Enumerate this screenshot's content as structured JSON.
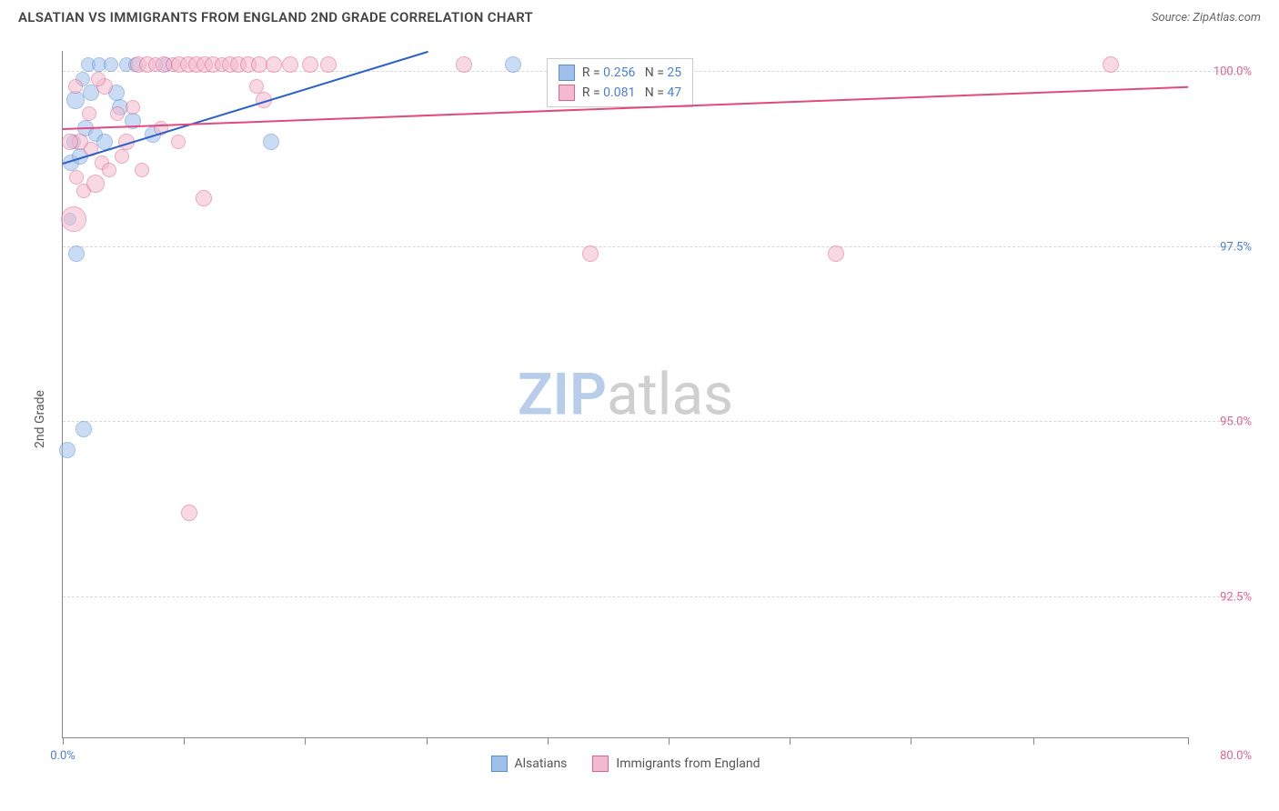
{
  "header": {
    "title": "ALSATIAN VS IMMIGRANTS FROM ENGLAND 2ND GRADE CORRELATION CHART",
    "source": "Source: ZipAtlas.com"
  },
  "chart": {
    "type": "scatter",
    "y_axis_label": "2nd Grade",
    "watermark": {
      "part1": "ZIP",
      "part2": "atlas",
      "color1": "#b7cdea",
      "color2": "#cfcfcf"
    },
    "background_color": "#ffffff",
    "grid_color": "#d8d8d8",
    "axis_color": "#888888",
    "xlim": [
      0,
      80
    ],
    "ylim": [
      90.5,
      100.3
    ],
    "xticks": [
      {
        "pos": 0,
        "label": "0.0%",
        "label_color": "#4a7fd6"
      },
      {
        "pos": 8.6,
        "label": ""
      },
      {
        "pos": 17.2,
        "label": ""
      },
      {
        "pos": 25.9,
        "label": ""
      },
      {
        "pos": 34.5,
        "label": ""
      },
      {
        "pos": 43.1,
        "label": ""
      },
      {
        "pos": 51.7,
        "label": ""
      },
      {
        "pos": 60.3,
        "label": ""
      },
      {
        "pos": 69.0,
        "label": ""
      },
      {
        "pos": 80.0,
        "label": "80.0%",
        "label_color": "#e16290",
        "at_right_edge": true
      }
    ],
    "yticks": [
      {
        "pos": 92.5,
        "label": "92.5%",
        "color": "#e16290"
      },
      {
        "pos": 95.0,
        "label": "95.0%",
        "color": "#e16290"
      },
      {
        "pos": 97.5,
        "label": "97.5%",
        "color": "#4a7fd6"
      },
      {
        "pos": 100.0,
        "label": "100.0%",
        "color": "#e16290"
      }
    ],
    "series": [
      {
        "name": "Alsatians",
        "color_fill": "#9fc0ea",
        "color_stroke": "#5a8fd6",
        "trend_color": "#2d62c8",
        "R": "0.256",
        "N": "25",
        "trend": {
          "x1": 0,
          "y1": 98.7,
          "x2": 26,
          "y2": 100.3
        },
        "points": [
          {
            "x": 0.3,
            "y": 94.6,
            "r": 9
          },
          {
            "x": 1.5,
            "y": 94.9,
            "r": 9
          },
          {
            "x": 1.0,
            "y": 97.4,
            "r": 9
          },
          {
            "x": 0.5,
            "y": 97.9,
            "r": 7
          },
          {
            "x": 0.6,
            "y": 98.7,
            "r": 9
          },
          {
            "x": 1.2,
            "y": 98.8,
            "r": 9
          },
          {
            "x": 0.8,
            "y": 99.0,
            "r": 8
          },
          {
            "x": 1.6,
            "y": 99.2,
            "r": 9
          },
          {
            "x": 2.3,
            "y": 99.1,
            "r": 8
          },
          {
            "x": 0.9,
            "y": 99.6,
            "r": 10
          },
          {
            "x": 1.4,
            "y": 99.9,
            "r": 8
          },
          {
            "x": 1.8,
            "y": 100.1,
            "r": 8
          },
          {
            "x": 2.6,
            "y": 100.1,
            "r": 8
          },
          {
            "x": 3.4,
            "y": 100.1,
            "r": 8
          },
          {
            "x": 4.1,
            "y": 99.5,
            "r": 9
          },
          {
            "x": 4.5,
            "y": 100.1,
            "r": 8
          },
          {
            "x": 5.2,
            "y": 100.1,
            "r": 8
          },
          {
            "x": 6.4,
            "y": 99.1,
            "r": 9
          },
          {
            "x": 7.3,
            "y": 100.1,
            "r": 8
          },
          {
            "x": 3.0,
            "y": 99.0,
            "r": 9
          },
          {
            "x": 5.0,
            "y": 99.3,
            "r": 9
          },
          {
            "x": 14.8,
            "y": 99.0,
            "r": 9
          },
          {
            "x": 32.0,
            "y": 100.1,
            "r": 9
          },
          {
            "x": 2.0,
            "y": 99.7,
            "r": 9
          },
          {
            "x": 3.8,
            "y": 99.7,
            "r": 9
          }
        ]
      },
      {
        "name": "Immigrants from England",
        "color_fill": "#f3b9cc",
        "color_stroke": "#e16290",
        "trend_color": "#e04a7e",
        "R": "0.081",
        "N": "47",
        "trend": {
          "x1": 0,
          "y1": 99.2,
          "x2": 80,
          "y2": 99.8
        },
        "points": [
          {
            "x": 0.8,
            "y": 97.9,
            "r": 14
          },
          {
            "x": 1.5,
            "y": 98.3,
            "r": 8
          },
          {
            "x": 2.3,
            "y": 98.4,
            "r": 10
          },
          {
            "x": 2.8,
            "y": 98.7,
            "r": 8
          },
          {
            "x": 1.2,
            "y": 99.0,
            "r": 9
          },
          {
            "x": 0.5,
            "y": 99.0,
            "r": 9
          },
          {
            "x": 3.3,
            "y": 98.6,
            "r": 8
          },
          {
            "x": 3.9,
            "y": 99.4,
            "r": 8
          },
          {
            "x": 4.5,
            "y": 99.0,
            "r": 9
          },
          {
            "x": 5.0,
            "y": 99.5,
            "r": 8
          },
          {
            "x": 5.4,
            "y": 100.1,
            "r": 9
          },
          {
            "x": 6.0,
            "y": 100.1,
            "r": 9
          },
          {
            "x": 6.6,
            "y": 100.1,
            "r": 8
          },
          {
            "x": 7.2,
            "y": 100.1,
            "r": 9
          },
          {
            "x": 7.8,
            "y": 100.1,
            "r": 8
          },
          {
            "x": 8.3,
            "y": 100.1,
            "r": 9
          },
          {
            "x": 8.9,
            "y": 100.1,
            "r": 9
          },
          {
            "x": 9.5,
            "y": 100.1,
            "r": 9
          },
          {
            "x": 10.1,
            "y": 100.1,
            "r": 9
          },
          {
            "x": 10.7,
            "y": 100.1,
            "r": 9
          },
          {
            "x": 11.3,
            "y": 100.1,
            "r": 8
          },
          {
            "x": 11.9,
            "y": 100.1,
            "r": 9
          },
          {
            "x": 12.5,
            "y": 100.1,
            "r": 9
          },
          {
            "x": 13.2,
            "y": 100.1,
            "r": 9
          },
          {
            "x": 14.0,
            "y": 100.1,
            "r": 9
          },
          {
            "x": 15.0,
            "y": 100.1,
            "r": 9
          },
          {
            "x": 16.2,
            "y": 100.1,
            "r": 9
          },
          {
            "x": 17.6,
            "y": 100.1,
            "r": 9
          },
          {
            "x": 18.9,
            "y": 100.1,
            "r": 9
          },
          {
            "x": 14.3,
            "y": 99.6,
            "r": 9
          },
          {
            "x": 5.6,
            "y": 98.6,
            "r": 8
          },
          {
            "x": 3.0,
            "y": 99.8,
            "r": 9
          },
          {
            "x": 10.0,
            "y": 98.2,
            "r": 9
          },
          {
            "x": 9.0,
            "y": 93.7,
            "r": 9
          },
          {
            "x": 28.5,
            "y": 100.1,
            "r": 9
          },
          {
            "x": 37.5,
            "y": 97.4,
            "r": 9
          },
          {
            "x": 55.0,
            "y": 97.4,
            "r": 9
          },
          {
            "x": 74.5,
            "y": 100.1,
            "r": 9
          },
          {
            "x": 1.9,
            "y": 99.4,
            "r": 8
          },
          {
            "x": 2.5,
            "y": 99.9,
            "r": 8
          },
          {
            "x": 4.2,
            "y": 98.8,
            "r": 8
          },
          {
            "x": 0.9,
            "y": 99.8,
            "r": 8
          },
          {
            "x": 7.0,
            "y": 99.2,
            "r": 8
          },
          {
            "x": 8.2,
            "y": 99.0,
            "r": 8
          },
          {
            "x": 1.0,
            "y": 98.5,
            "r": 8
          },
          {
            "x": 13.8,
            "y": 99.8,
            "r": 8
          },
          {
            "x": 2.0,
            "y": 98.9,
            "r": 8
          }
        ]
      }
    ],
    "stats_box": {
      "left_pct": 43,
      "top_pct": 1
    },
    "bottom_legend": [
      {
        "label": "Alsatians",
        "fill": "#9fc0ea",
        "stroke": "#5a8fd6"
      },
      {
        "label": "Immigrants from England",
        "fill": "#f3b9cc",
        "stroke": "#e16290"
      }
    ]
  }
}
